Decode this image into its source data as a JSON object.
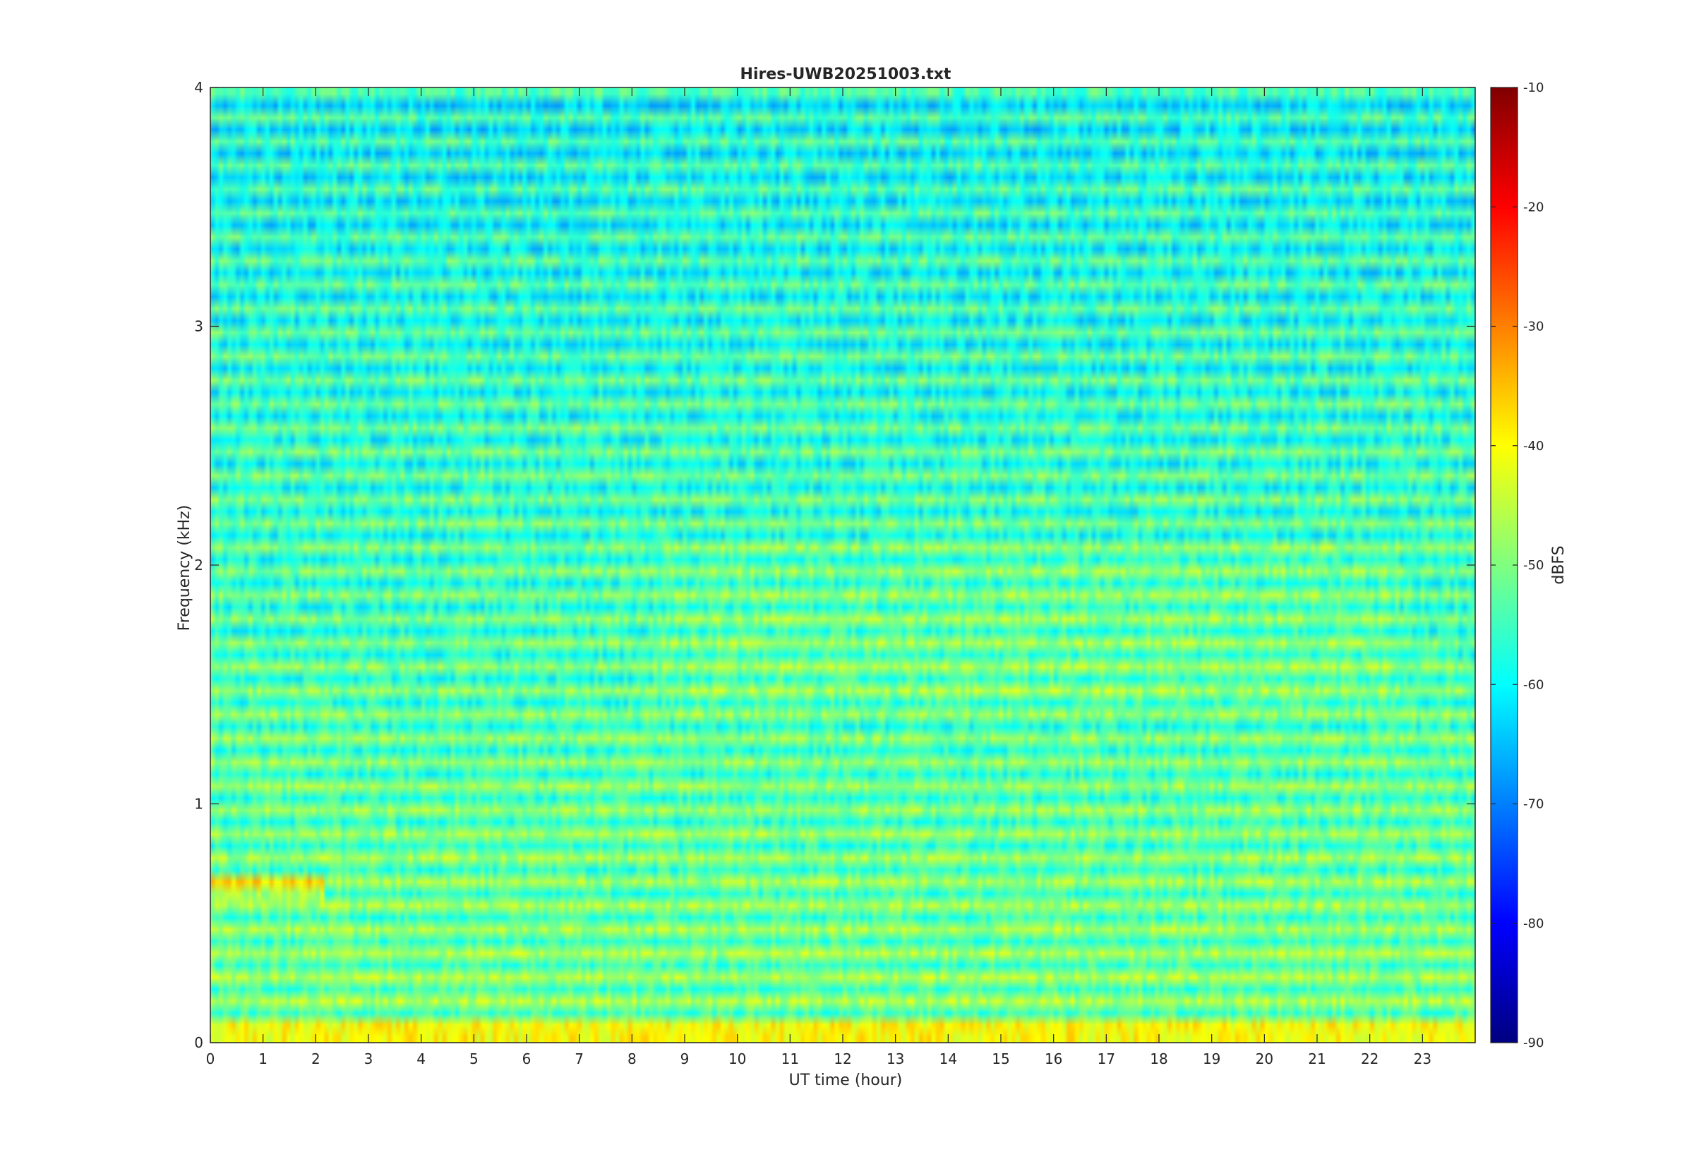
{
  "chart_data": {
    "type": "heatmap",
    "title": "Hires-UWB20251003.txt",
    "xlabel": "UT time (hour)",
    "ylabel": "Frequency (kHz)",
    "xlim": [
      0,
      24
    ],
    "ylim": [
      0,
      4
    ],
    "xticks": [
      0,
      1,
      2,
      3,
      4,
      5,
      6,
      7,
      8,
      9,
      10,
      11,
      12,
      13,
      14,
      15,
      16,
      17,
      18,
      19,
      20,
      21,
      22,
      23
    ],
    "yticks": [
      0,
      1,
      2,
      3,
      4
    ],
    "colormap": "jet",
    "colorbar": {
      "label": "dBFS",
      "clim": [
        -90,
        -10
      ],
      "ticks": [
        -10,
        -20,
        -30,
        -40,
        -50,
        -60,
        -70,
        -80,
        -90
      ]
    },
    "grid": false
  }
}
